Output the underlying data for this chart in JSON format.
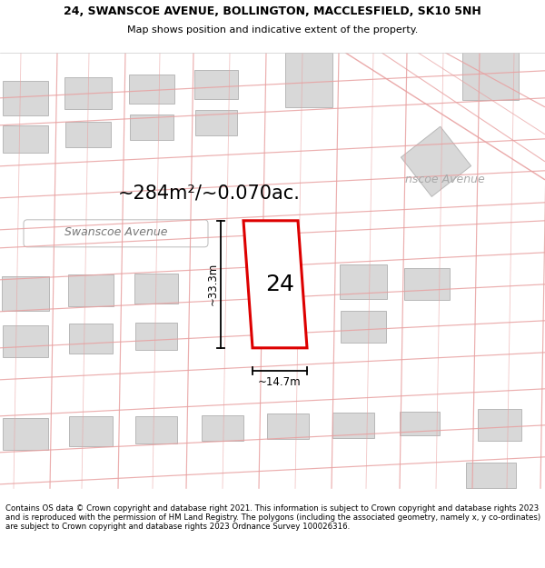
{
  "title_line1": "24, SWANSCOE AVENUE, BOLLINGTON, MACCLESFIELD, SK10 5NH",
  "title_line2": "Map shows position and indicative extent of the property.",
  "footer_text": "Contains OS data © Crown copyright and database right 2021. This information is subject to Crown copyright and database rights 2023 and is reproduced with the permission of HM Land Registry. The polygons (including the associated geometry, namely x, y co-ordinates) are subject to Crown copyright and database rights 2023 Ordnance Survey 100026316.",
  "area_label": "~284m²/~0.070ac.",
  "street_label": "Swanscoe Avenue",
  "street_label2": "nscoe Avenue",
  "property_number": "24",
  "dim_width": "~14.7m",
  "dim_height": "~33.3m",
  "bg_color": "#ffffff",
  "map_bg": "#ffffff",
  "road_line_color": "#e8a0a0",
  "building_fill": "#d8d8d8",
  "building_edge": "#b8b8b8",
  "highlight_fill": "#ffffff",
  "highlight_edge": "#dd0000",
  "title_fontsize": 9.0,
  "subtitle_fontsize": 8.0,
  "footer_fontsize": 6.2,
  "area_fontsize": 15,
  "street_fontsize": 9,
  "number_fontsize": 18,
  "dim_fontsize": 8.5
}
